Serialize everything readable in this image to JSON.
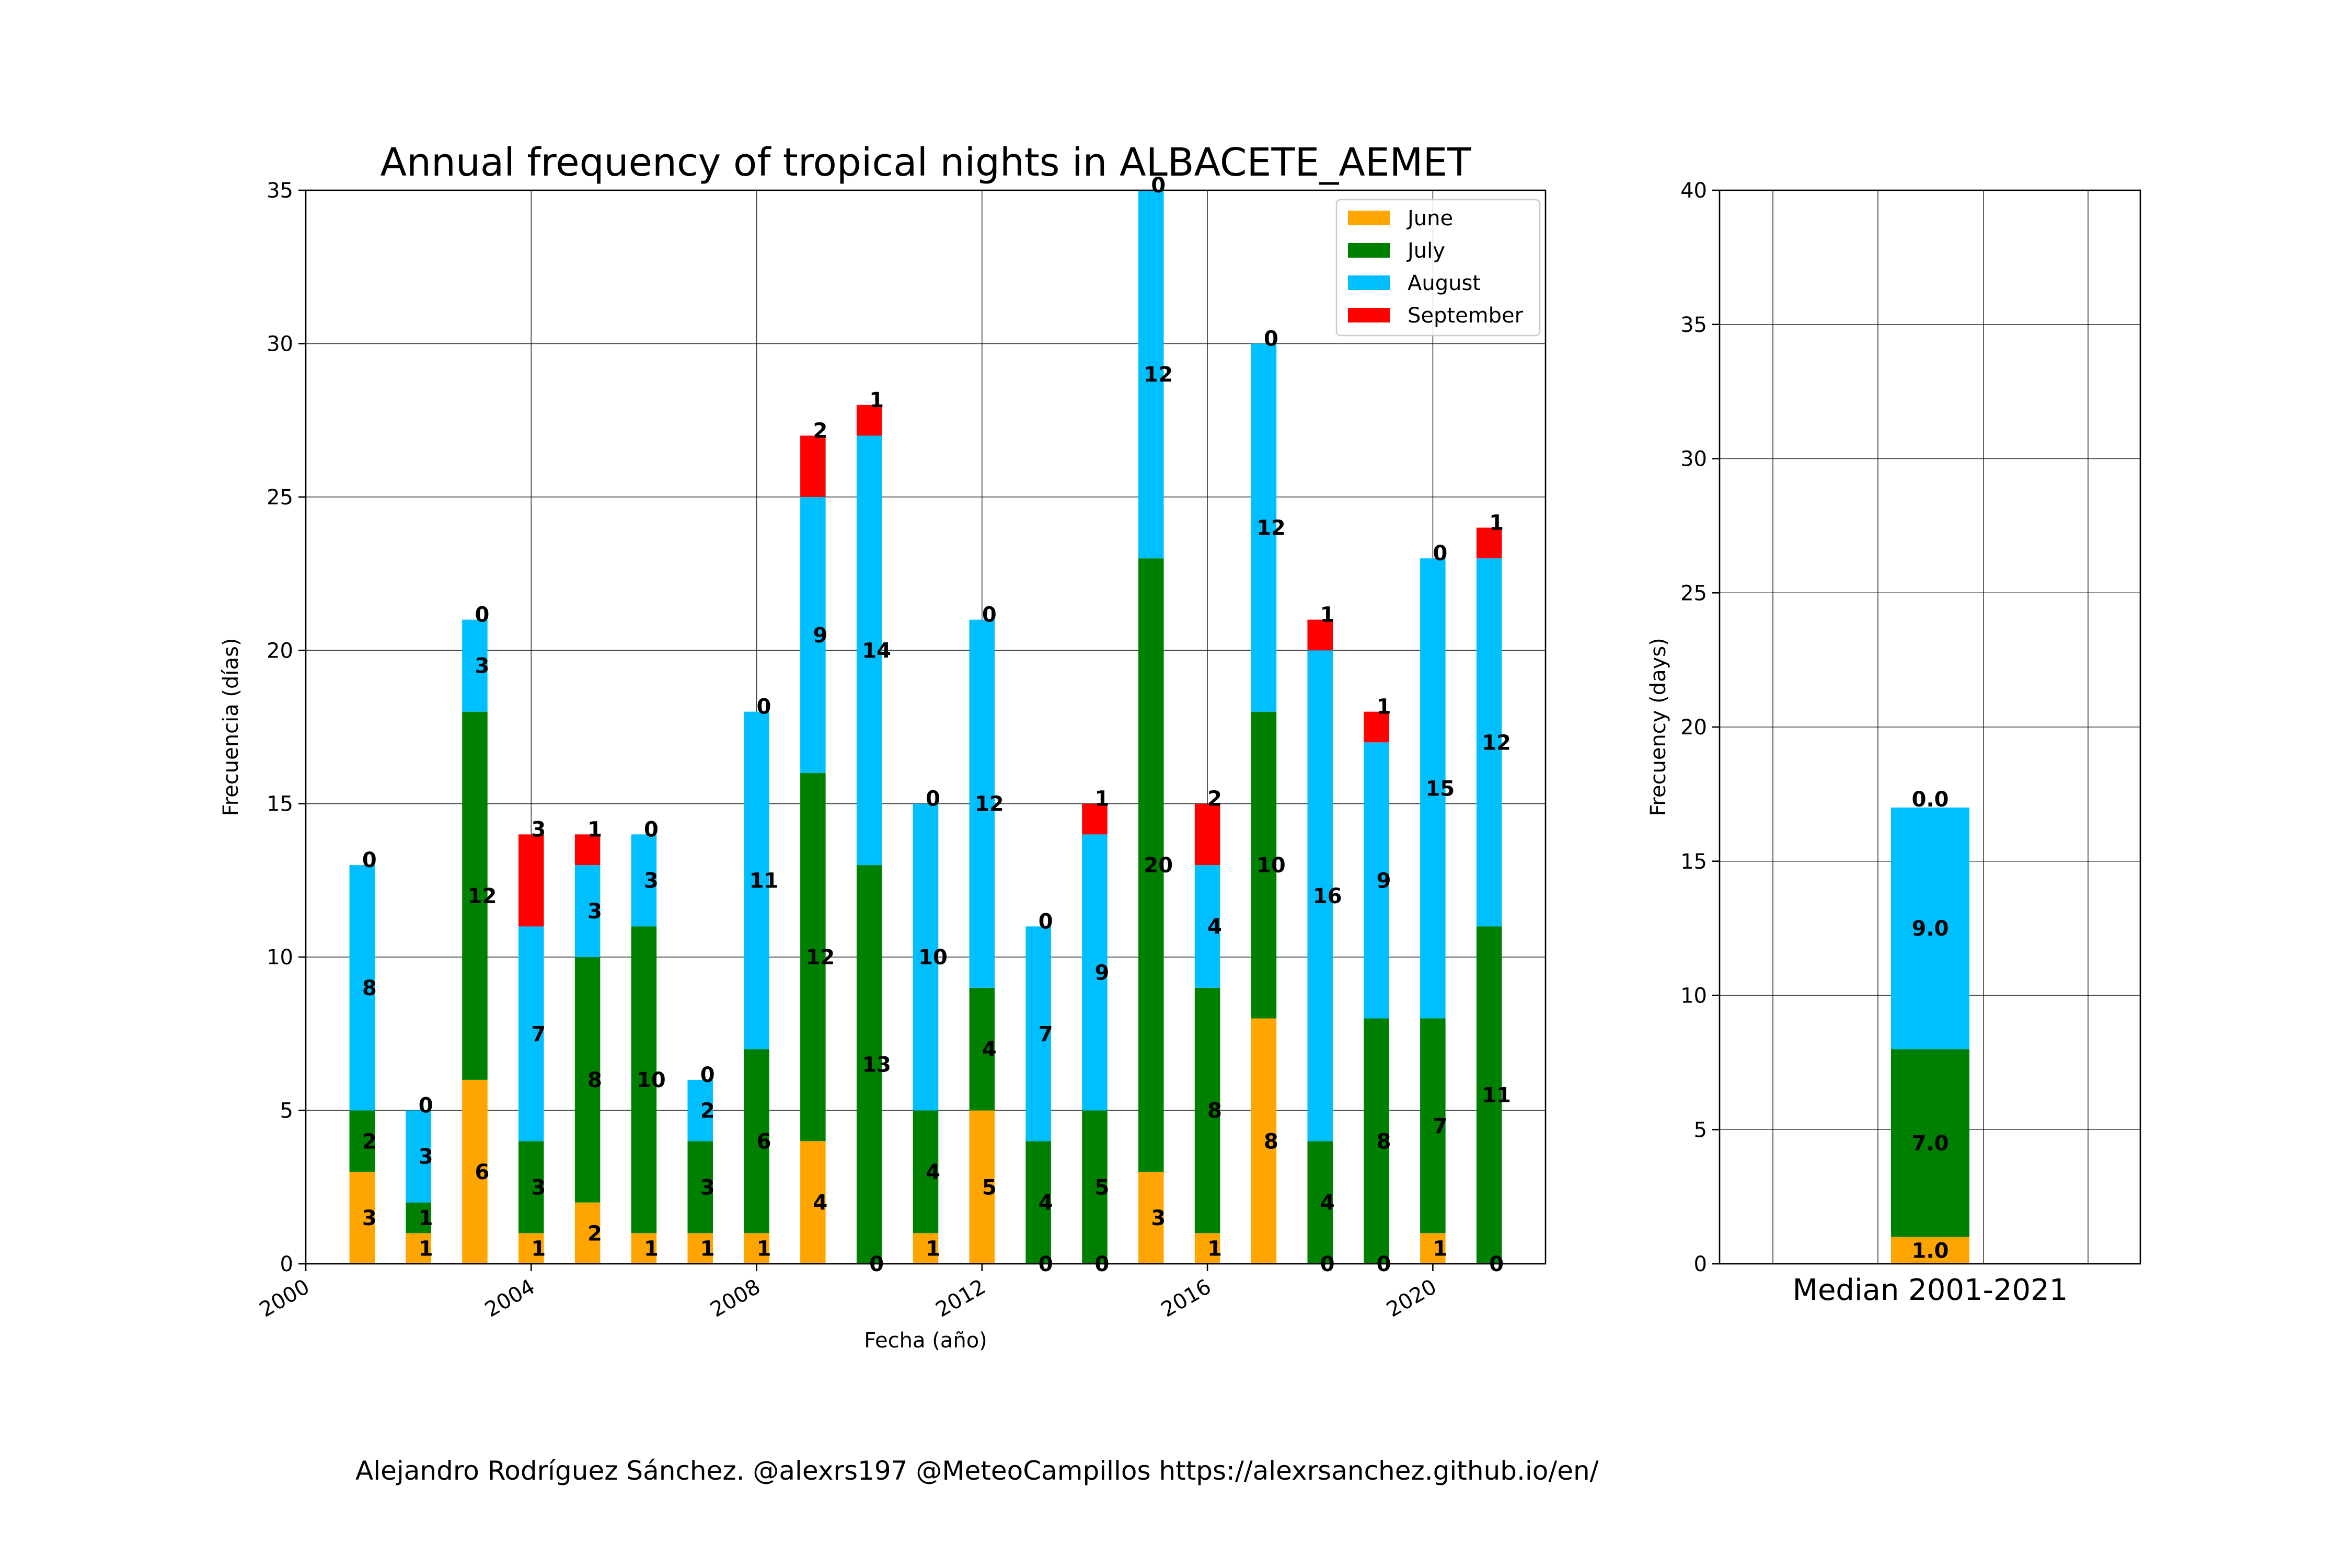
{
  "colors": {
    "June": "#ffa500",
    "July": "#008000",
    "August": "#00bfff",
    "September": "#ff0000"
  },
  "credit": "Alejandro Rodríguez Sánchez. @alexrs197 @MeteoCampillos   https://alexrsanchez.github.io/en/",
  "chart_data": [
    {
      "type": "bar",
      "stacked": true,
      "title": "Annual frequency of tropical nights in ALBACETE_AEMET",
      "xlabel": "Fecha (año)",
      "ylabel": "Frecuencia (días)",
      "xlim": [
        2000,
        2022
      ],
      "ylim": [
        0,
        35
      ],
      "xticks": [
        "2000",
        "2004",
        "2008",
        "2012",
        "2016",
        "2020"
      ],
      "yticks": [
        "0",
        "5",
        "10",
        "15",
        "20",
        "25",
        "30",
        "35"
      ],
      "grid": true,
      "legend": "top-right",
      "x": [
        2001,
        2002,
        2003,
        2004,
        2005,
        2006,
        2007,
        2008,
        2009,
        2010,
        2011,
        2012,
        2013,
        2014,
        2015,
        2016,
        2017,
        2018,
        2019,
        2020,
        2021
      ],
      "series": [
        {
          "name": "June",
          "values": [
            3,
            1,
            6,
            1,
            2,
            1,
            1,
            1,
            4,
            0,
            1,
            5,
            0,
            0,
            3,
            1,
            8,
            0,
            0,
            1,
            0
          ]
        },
        {
          "name": "July",
          "values": [
            2,
            1,
            12,
            3,
            8,
            10,
            3,
            6,
            12,
            13,
            4,
            4,
            4,
            5,
            20,
            8,
            10,
            4,
            8,
            7,
            11
          ]
        },
        {
          "name": "August",
          "values": [
            8,
            3,
            3,
            7,
            3,
            3,
            2,
            11,
            9,
            14,
            10,
            12,
            7,
            9,
            12,
            4,
            12,
            16,
            9,
            15,
            12
          ]
        },
        {
          "name": "September",
          "values": [
            0,
            0,
            0,
            3,
            1,
            0,
            0,
            0,
            2,
            1,
            0,
            0,
            0,
            1,
            0,
            2,
            0,
            1,
            1,
            0,
            1
          ]
        }
      ]
    },
    {
      "type": "bar",
      "stacked": true,
      "title": "",
      "xlabel": "",
      "ylabel": "Frecuency (days)",
      "ylim": [
        0,
        40
      ],
      "yticks": [
        "0",
        "5",
        "10",
        "15",
        "20",
        "25",
        "30",
        "35",
        "40"
      ],
      "grid": true,
      "categories": [
        "Median 2001-2021"
      ],
      "series": [
        {
          "name": "June",
          "values": [
            1.0
          ],
          "labels": [
            "1.0"
          ]
        },
        {
          "name": "July",
          "values": [
            7.0
          ],
          "labels": [
            "7.0"
          ]
        },
        {
          "name": "August",
          "values": [
            9.0
          ],
          "labels": [
            "9.0"
          ]
        },
        {
          "name": "September",
          "values": [
            0.0
          ],
          "labels": [
            "0.0"
          ]
        }
      ]
    }
  ]
}
